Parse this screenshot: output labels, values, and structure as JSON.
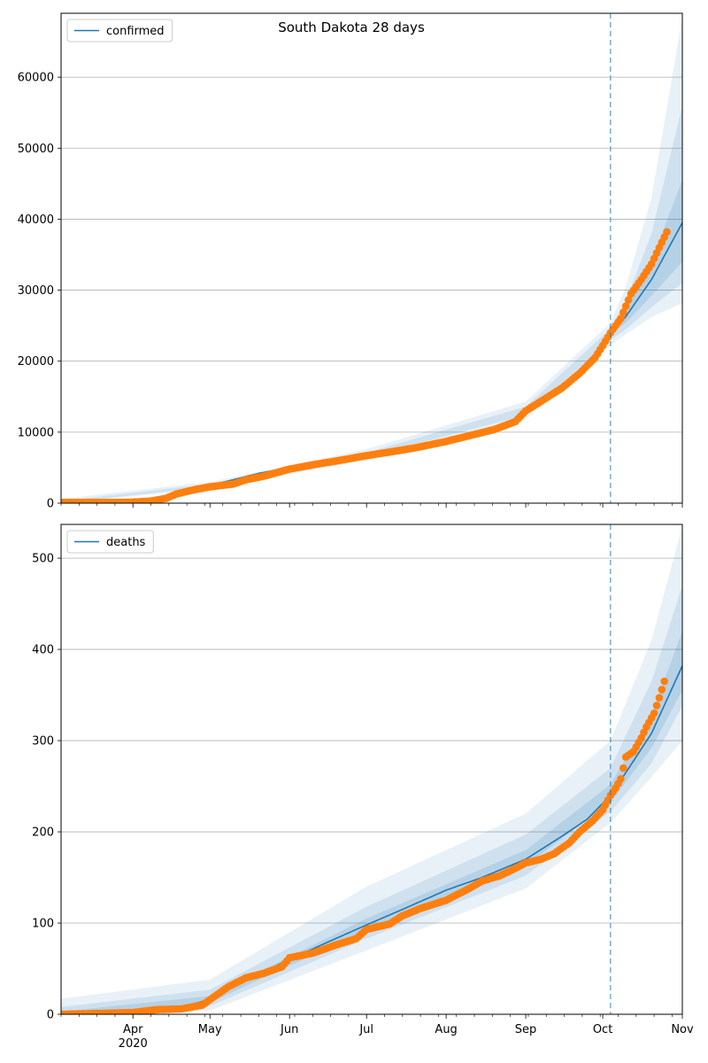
{
  "figure": {
    "suptitle": "South Dakota 28 days"
  },
  "chart_data": [
    {
      "type": "line",
      "series_name": "confirmed",
      "x_tick_labels": [
        {
          "date": "2020-04-01",
          "label": "Apr",
          "sublabel": "2020"
        },
        {
          "date": "2020-05-01",
          "label": "May"
        },
        {
          "date": "2020-06-01",
          "label": "Jun"
        },
        {
          "date": "2020-07-01",
          "label": "Jul"
        },
        {
          "date": "2020-08-01",
          "label": "Aug"
        },
        {
          "date": "2020-09-01",
          "label": "Sep"
        },
        {
          "date": "2020-10-01",
          "label": "Oct"
        },
        {
          "date": "2020-11-01",
          "label": "Nov"
        }
      ],
      "xlim": [
        "2020-03-04",
        "2020-11-01"
      ],
      "ylim": [
        0,
        69000
      ],
      "y_ticks": [
        0,
        10000,
        20000,
        30000,
        40000,
        50000,
        60000
      ],
      "grid": "horizontal",
      "legend_position": "upper left",
      "forecast_start": "2020-10-04",
      "colors": {
        "model": "#1f77b4",
        "observed": "#ff7f0e"
      },
      "model": [
        [
          "2020-03-04",
          100
        ],
        [
          "2020-03-20",
          120
        ],
        [
          "2020-04-01",
          150
        ],
        [
          "2020-04-10",
          400
        ],
        [
          "2020-04-20",
          1400
        ],
        [
          "2020-05-01",
          2500
        ],
        [
          "2020-05-10",
          3300
        ],
        [
          "2020-05-20",
          4200
        ],
        [
          "2020-06-01",
          5000
        ],
        [
          "2020-06-15",
          5900
        ],
        [
          "2020-07-01",
          6800
        ],
        [
          "2020-07-15",
          7600
        ],
        [
          "2020-08-01",
          8700
        ],
        [
          "2020-08-15",
          9900
        ],
        [
          "2020-08-25",
          11100
        ],
        [
          "2020-09-01",
          13000
        ],
        [
          "2020-09-10",
          15000
        ],
        [
          "2020-09-20",
          17500
        ],
        [
          "2020-10-01",
          22000
        ],
        [
          "2020-10-04",
          23800
        ],
        [
          "2020-10-10",
          26300
        ],
        [
          "2020-10-20",
          31500
        ],
        [
          "2020-11-01",
          39500
        ]
      ],
      "band_inner": {
        "lower": [
          [
            "2020-10-04",
            23800
          ],
          [
            "2020-10-10",
            25400
          ],
          [
            "2020-10-20",
            29200
          ],
          [
            "2020-11-01",
            34000
          ]
        ],
        "upper": [
          [
            "2020-10-04",
            23800
          ],
          [
            "2020-10-10",
            27200
          ],
          [
            "2020-10-20",
            34200
          ],
          [
            "2020-11-01",
            45500
          ]
        ]
      },
      "band_mid": {
        "lower": [
          [
            "2020-03-04",
            0
          ],
          [
            "2020-05-01",
            2300
          ],
          [
            "2020-07-01",
            6500
          ],
          [
            "2020-09-01",
            12400
          ],
          [
            "2020-10-04",
            23000
          ],
          [
            "2020-10-10",
            24500
          ],
          [
            "2020-10-20",
            27600
          ],
          [
            "2020-11-01",
            31000
          ]
        ],
        "upper": [
          [
            "2020-03-04",
            300
          ],
          [
            "2020-05-01",
            2700
          ],
          [
            "2020-07-01",
            7100
          ],
          [
            "2020-09-01",
            13600
          ],
          [
            "2020-10-04",
            24600
          ],
          [
            "2020-10-10",
            28500
          ],
          [
            "2020-10-20",
            38000
          ],
          [
            "2020-11-01",
            56000
          ]
        ]
      },
      "band_outer": {
        "lower": [
          [
            "2020-03-04",
            0
          ],
          [
            "2020-05-01",
            2000
          ],
          [
            "2020-07-01",
            6100
          ],
          [
            "2020-09-01",
            11800
          ],
          [
            "2020-10-04",
            22200
          ],
          [
            "2020-10-10",
            23800
          ],
          [
            "2020-10-20",
            26200
          ],
          [
            "2020-11-01",
            28200
          ]
        ],
        "upper": [
          [
            "2020-03-04",
            600
          ],
          [
            "2020-05-01",
            3000
          ],
          [
            "2020-07-01",
            7600
          ],
          [
            "2020-09-01",
            14300
          ],
          [
            "2020-10-04",
            25400
          ],
          [
            "2020-10-10",
            30500
          ],
          [
            "2020-10-20",
            43000
          ],
          [
            "2020-11-01",
            68500
          ]
        ]
      },
      "observed": [
        [
          "2020-03-04",
          100
        ],
        [
          "2020-03-15",
          100
        ],
        [
          "2020-03-25",
          100
        ],
        [
          "2020-04-01",
          150
        ],
        [
          "2020-04-08",
          300
        ],
        [
          "2020-04-14",
          700
        ],
        [
          "2020-04-18",
          1300
        ],
        [
          "2020-04-25",
          1900
        ],
        [
          "2020-05-01",
          2300
        ],
        [
          "2020-05-10",
          2700
        ],
        [
          "2020-05-15",
          3300
        ],
        [
          "2020-05-22",
          3800
        ],
        [
          "2020-06-01",
          4800
        ],
        [
          "2020-06-10",
          5400
        ],
        [
          "2020-06-20",
          6000
        ],
        [
          "2020-07-01",
          6700
        ],
        [
          "2020-07-10",
          7200
        ],
        [
          "2020-07-20",
          7800
        ],
        [
          "2020-08-01",
          8700
        ],
        [
          "2020-08-10",
          9500
        ],
        [
          "2020-08-20",
          10400
        ],
        [
          "2020-08-28",
          11500
        ],
        [
          "2020-09-01",
          13000
        ],
        [
          "2020-09-08",
          14600
        ],
        [
          "2020-09-15",
          16200
        ],
        [
          "2020-09-22",
          18300
        ],
        [
          "2020-09-28",
          20500
        ],
        [
          "2020-10-01",
          22200
        ],
        [
          "2020-10-04",
          24000
        ],
        [
          "2020-10-08",
          26000
        ],
        [
          "2020-10-12",
          29500
        ],
        [
          "2020-10-16",
          31500
        ],
        [
          "2020-10-20",
          33700
        ],
        [
          "2020-10-23",
          36000
        ],
        [
          "2020-10-26",
          38200
        ]
      ]
    },
    {
      "type": "line",
      "series_name": "deaths",
      "x_tick_labels": [
        {
          "date": "2020-04-01",
          "label": "Apr",
          "sublabel": "2020"
        },
        {
          "date": "2020-05-01",
          "label": "May"
        },
        {
          "date": "2020-06-01",
          "label": "Jun"
        },
        {
          "date": "2020-07-01",
          "label": "Jul"
        },
        {
          "date": "2020-08-01",
          "label": "Aug"
        },
        {
          "date": "2020-09-01",
          "label": "Sep"
        },
        {
          "date": "2020-10-01",
          "label": "Oct"
        },
        {
          "date": "2020-11-01",
          "label": "Nov"
        }
      ],
      "xlim": [
        "2020-03-04",
        "2020-11-01"
      ],
      "ylim": [
        0,
        537
      ],
      "y_ticks": [
        0,
        100,
        200,
        300,
        400,
        500
      ],
      "grid": "horizontal",
      "legend_position": "upper left",
      "forecast_start": "2020-10-04",
      "colors": {
        "model": "#1f77b4",
        "observed": "#ff7f0e"
      },
      "model": [
        [
          "2020-03-04",
          0
        ],
        [
          "2020-04-01",
          2
        ],
        [
          "2020-04-15",
          5
        ],
        [
          "2020-05-01",
          16
        ],
        [
          "2020-05-15",
          38
        ],
        [
          "2020-06-01",
          60
        ],
        [
          "2020-06-15",
          78
        ],
        [
          "2020-07-01",
          98
        ],
        [
          "2020-07-15",
          115
        ],
        [
          "2020-08-01",
          136
        ],
        [
          "2020-08-15",
          150
        ],
        [
          "2020-09-01",
          170
        ],
        [
          "2020-09-15",
          195
        ],
        [
          "2020-09-25",
          214
        ],
        [
          "2020-10-04",
          240
        ],
        [
          "2020-10-10",
          265
        ],
        [
          "2020-10-20",
          308
        ],
        [
          "2020-11-01",
          382
        ]
      ],
      "band_inner": {
        "lower": [
          [
            "2020-03-04",
            0
          ],
          [
            "2020-05-01",
            13
          ],
          [
            "2020-07-01",
            92
          ],
          [
            "2020-09-01",
            163
          ],
          [
            "2020-10-04",
            232
          ],
          [
            "2020-10-20",
            292
          ],
          [
            "2020-11-01",
            355
          ]
        ],
        "upper": [
          [
            "2020-03-04",
            3
          ],
          [
            "2020-05-01",
            20
          ],
          [
            "2020-07-01",
            105
          ],
          [
            "2020-09-01",
            180
          ],
          [
            "2020-10-04",
            252
          ],
          [
            "2020-10-20",
            328
          ],
          [
            "2020-11-01",
            420
          ]
        ]
      },
      "band_mid": {
        "lower": [
          [
            "2020-03-04",
            0
          ],
          [
            "2020-05-01",
            9
          ],
          [
            "2020-07-01",
            83
          ],
          [
            "2020-09-01",
            152
          ],
          [
            "2020-10-04",
            222
          ],
          [
            "2020-10-20",
            275
          ],
          [
            "2020-11-01",
            338
          ]
        ],
        "upper": [
          [
            "2020-03-04",
            8
          ],
          [
            "2020-05-01",
            27
          ],
          [
            "2020-07-01",
            118
          ],
          [
            "2020-09-01",
            197
          ],
          [
            "2020-10-04",
            270
          ],
          [
            "2020-10-20",
            365
          ],
          [
            "2020-11-01",
            470
          ]
        ]
      },
      "band_outer": {
        "lower": [
          [
            "2020-03-04",
            0
          ],
          [
            "2020-05-01",
            4
          ],
          [
            "2020-07-01",
            70
          ],
          [
            "2020-09-01",
            138
          ],
          [
            "2020-10-04",
            210
          ],
          [
            "2020-10-20",
            260
          ],
          [
            "2020-11-01",
            300
          ]
        ],
        "upper": [
          [
            "2020-03-04",
            17
          ],
          [
            "2020-05-01",
            38
          ],
          [
            "2020-07-01",
            140
          ],
          [
            "2020-09-01",
            220
          ],
          [
            "2020-10-04",
            300
          ],
          [
            "2020-10-20",
            410
          ],
          [
            "2020-11-01",
            535
          ]
        ]
      },
      "observed": [
        [
          "2020-03-04",
          0
        ],
        [
          "2020-03-20",
          1
        ],
        [
          "2020-04-01",
          2
        ],
        [
          "2020-04-10",
          5
        ],
        [
          "2020-04-20",
          6
        ],
        [
          "2020-04-28",
          10
        ],
        [
          "2020-05-03",
          20
        ],
        [
          "2020-05-08",
          30
        ],
        [
          "2020-05-15",
          40
        ],
        [
          "2020-05-22",
          45
        ],
        [
          "2020-05-29",
          52
        ],
        [
          "2020-06-01",
          62
        ],
        [
          "2020-06-10",
          67
        ],
        [
          "2020-06-18",
          75
        ],
        [
          "2020-06-27",
          83
        ],
        [
          "2020-07-01",
          93
        ],
        [
          "2020-07-10",
          99
        ],
        [
          "2020-07-15",
          108
        ],
        [
          "2020-07-22",
          116
        ],
        [
          "2020-08-01",
          125
        ],
        [
          "2020-08-10",
          138
        ],
        [
          "2020-08-15",
          146
        ],
        [
          "2020-08-22",
          152
        ],
        [
          "2020-08-28",
          160
        ],
        [
          "2020-09-01",
          166
        ],
        [
          "2020-09-07",
          170
        ],
        [
          "2020-09-12",
          176
        ],
        [
          "2020-09-18",
          188
        ],
        [
          "2020-09-22",
          200
        ],
        [
          "2020-09-27",
          212
        ],
        [
          "2020-10-01",
          224
        ],
        [
          "2020-10-04",
          240
        ],
        [
          "2020-10-06",
          248
        ],
        [
          "2020-10-08",
          258
        ],
        [
          "2020-10-10",
          282
        ],
        [
          "2020-10-13",
          288
        ],
        [
          "2020-10-16",
          303
        ],
        [
          "2020-10-18",
          315
        ],
        [
          "2020-10-21",
          330
        ],
        [
          "2020-10-23",
          347
        ],
        [
          "2020-10-25",
          365
        ]
      ]
    }
  ]
}
